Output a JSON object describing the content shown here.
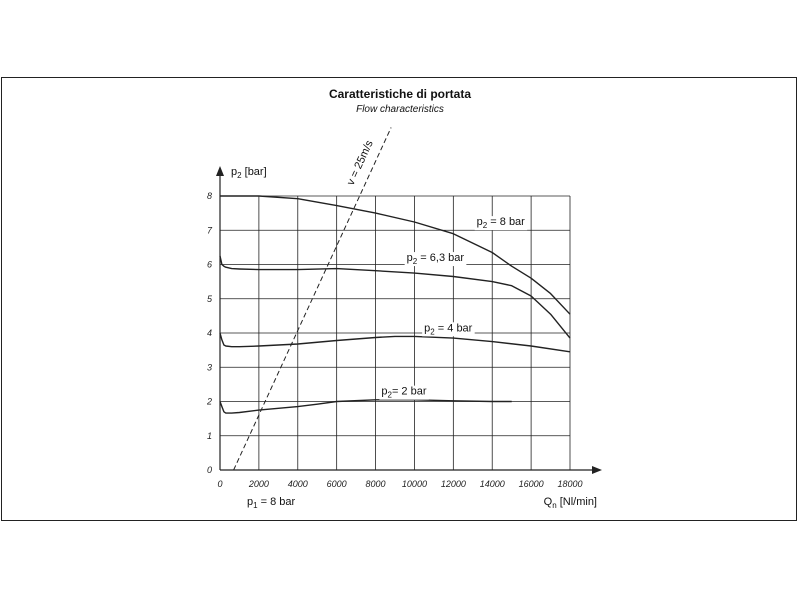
{
  "title": "Caratteristiche di portata",
  "subtitle": "Flow characteristics",
  "colors": {
    "line": "#222222",
    "grid": "#222222",
    "background": "#ffffff"
  },
  "chart_data": {
    "type": "line",
    "title": "Caratteristiche di portata",
    "subtitle": "Flow characteristics",
    "ylabel": {
      "main": "p",
      "sub": "2",
      "rest": " [bar]"
    },
    "xlabel": {
      "main": "Q",
      "sub": "n",
      "rest": " [Nl/min]"
    },
    "inlet_label": {
      "main": "p",
      "sub": "1",
      "rest": " = 8 bar"
    },
    "xlim": [
      0,
      18000
    ],
    "ylim": [
      0,
      8
    ],
    "x_ticks": [
      0,
      2000,
      4000,
      6000,
      8000,
      10000,
      12000,
      14000,
      16000,
      18000
    ],
    "y_ticks": [
      0,
      1,
      2,
      3,
      4,
      5,
      6,
      7,
      8
    ],
    "grid": true,
    "series": [
      {
        "name": "p2 = 8 bar",
        "label": {
          "main": "p",
          "sub": "2",
          "rest": " = 8 bar"
        },
        "label_at": [
          13200,
          7.15
        ],
        "x": [
          0,
          2000,
          4000,
          6000,
          8000,
          10000,
          12000,
          14000,
          15000,
          16000,
          17000,
          18000
        ],
        "y": [
          8.0,
          8.0,
          7.92,
          7.72,
          7.5,
          7.24,
          6.9,
          6.35,
          5.95,
          5.6,
          5.15,
          4.55
        ]
      },
      {
        "name": "p2 = 6,3 bar",
        "label": {
          "main": "p",
          "sub": "2",
          "rest": " = 6,3 bar"
        },
        "label_at": [
          9600,
          6.1
        ],
        "x": [
          0,
          100,
          200,
          300,
          600,
          1000,
          2000,
          4000,
          6000,
          8000,
          10000,
          12000,
          14000,
          15000,
          16000,
          17000,
          18000
        ],
        "y": [
          6.25,
          6.0,
          5.95,
          5.92,
          5.88,
          5.87,
          5.85,
          5.85,
          5.88,
          5.82,
          5.75,
          5.65,
          5.5,
          5.38,
          5.08,
          4.55,
          3.85
        ]
      },
      {
        "name": "p2 = 4 bar",
        "label": {
          "main": "p",
          "sub": "2",
          "rest": " = 4 bar"
        },
        "label_at": [
          10500,
          4.05
        ],
        "x": [
          0,
          100,
          200,
          300,
          600,
          1000,
          2000,
          4000,
          6000,
          8000,
          9000,
          10000,
          12000,
          14000,
          16000,
          18000
        ],
        "y": [
          4.0,
          3.8,
          3.65,
          3.62,
          3.6,
          3.6,
          3.62,
          3.68,
          3.78,
          3.87,
          3.9,
          3.9,
          3.85,
          3.75,
          3.62,
          3.45
        ]
      },
      {
        "name": "p2 = 2 bar",
        "label": {
          "main": "p",
          "sub": "2",
          "rest": "= 2 bar"
        },
        "label_at": [
          8300,
          2.2
        ],
        "x": [
          0,
          100,
          200,
          300,
          600,
          1000,
          2000,
          4000,
          5000,
          6000,
          8000,
          10000,
          12000,
          14000,
          15000
        ],
        "y": [
          2.0,
          1.85,
          1.7,
          1.66,
          1.66,
          1.68,
          1.75,
          1.85,
          1.92,
          2.0,
          2.05,
          2.05,
          2.02,
          2.0,
          2.0
        ]
      }
    ],
    "velocity_line": {
      "label": "v = 25m/s",
      "x": [
        700,
        8800
      ],
      "y": [
        0,
        10
      ]
    }
  }
}
